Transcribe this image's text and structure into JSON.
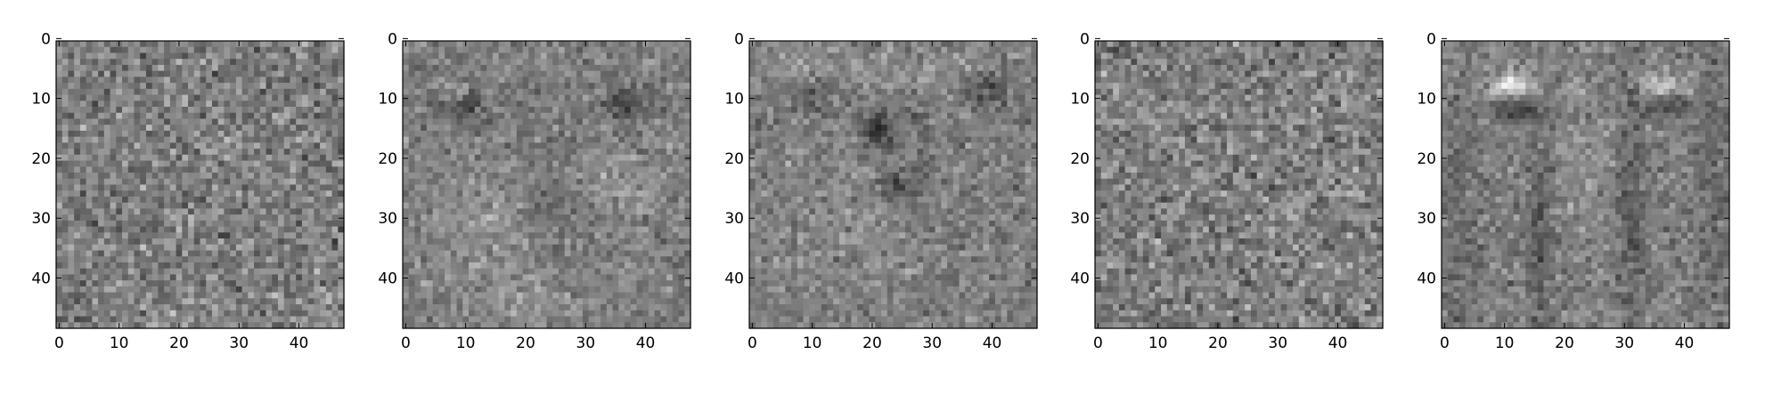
{
  "chart_data": [
    {
      "type": "heatmap",
      "colormap": "gray",
      "grid_size": [
        48,
        48
      ],
      "pattern": "uniform fine-grained noise",
      "xticks": [
        "0",
        "10",
        "20",
        "30",
        "40"
      ],
      "yticks": [
        "0",
        "10",
        "20",
        "30",
        "40"
      ],
      "xlim": [
        0,
        47
      ],
      "ylim": [
        47,
        0
      ]
    },
    {
      "type": "heatmap",
      "colormap": "gray",
      "grid_size": [
        48,
        48
      ],
      "pattern": "face-like structure with dark eye regions and smoother blobs",
      "xticks": [
        "0",
        "10",
        "20",
        "30",
        "40"
      ],
      "yticks": [
        "0",
        "10",
        "20",
        "30",
        "40"
      ],
      "xlim": [
        0,
        47
      ],
      "ylim": [
        47,
        0
      ]
    },
    {
      "type": "heatmap",
      "colormap": "gray",
      "grid_size": [
        48,
        48
      ],
      "pattern": "face-like structure with dark brow band and centre features",
      "xticks": [
        "0",
        "10",
        "20",
        "30",
        "40"
      ],
      "yticks": [
        "0",
        "10",
        "20",
        "30",
        "40"
      ],
      "xlim": [
        0,
        47
      ],
      "ylim": [
        47,
        0
      ]
    },
    {
      "type": "heatmap",
      "colormap": "gray",
      "grid_size": [
        48,
        48
      ],
      "pattern": "uniform fine-grained noise",
      "xticks": [
        "0",
        "10",
        "20",
        "30",
        "40"
      ],
      "yticks": [
        "0",
        "10",
        "20",
        "30",
        "40"
      ],
      "xlim": [
        0,
        47
      ],
      "ylim": [
        47,
        0
      ]
    },
    {
      "type": "heatmap",
      "colormap": "gray",
      "grid_size": [
        48,
        48
      ],
      "pattern": "bright eye blobs near top with dark vertical streaks",
      "xticks": [
        "0",
        "10",
        "20",
        "30",
        "40"
      ],
      "yticks": [
        "0",
        "10",
        "20",
        "30",
        "40"
      ],
      "xlim": [
        0,
        47
      ],
      "ylim": [
        47,
        0
      ]
    }
  ]
}
